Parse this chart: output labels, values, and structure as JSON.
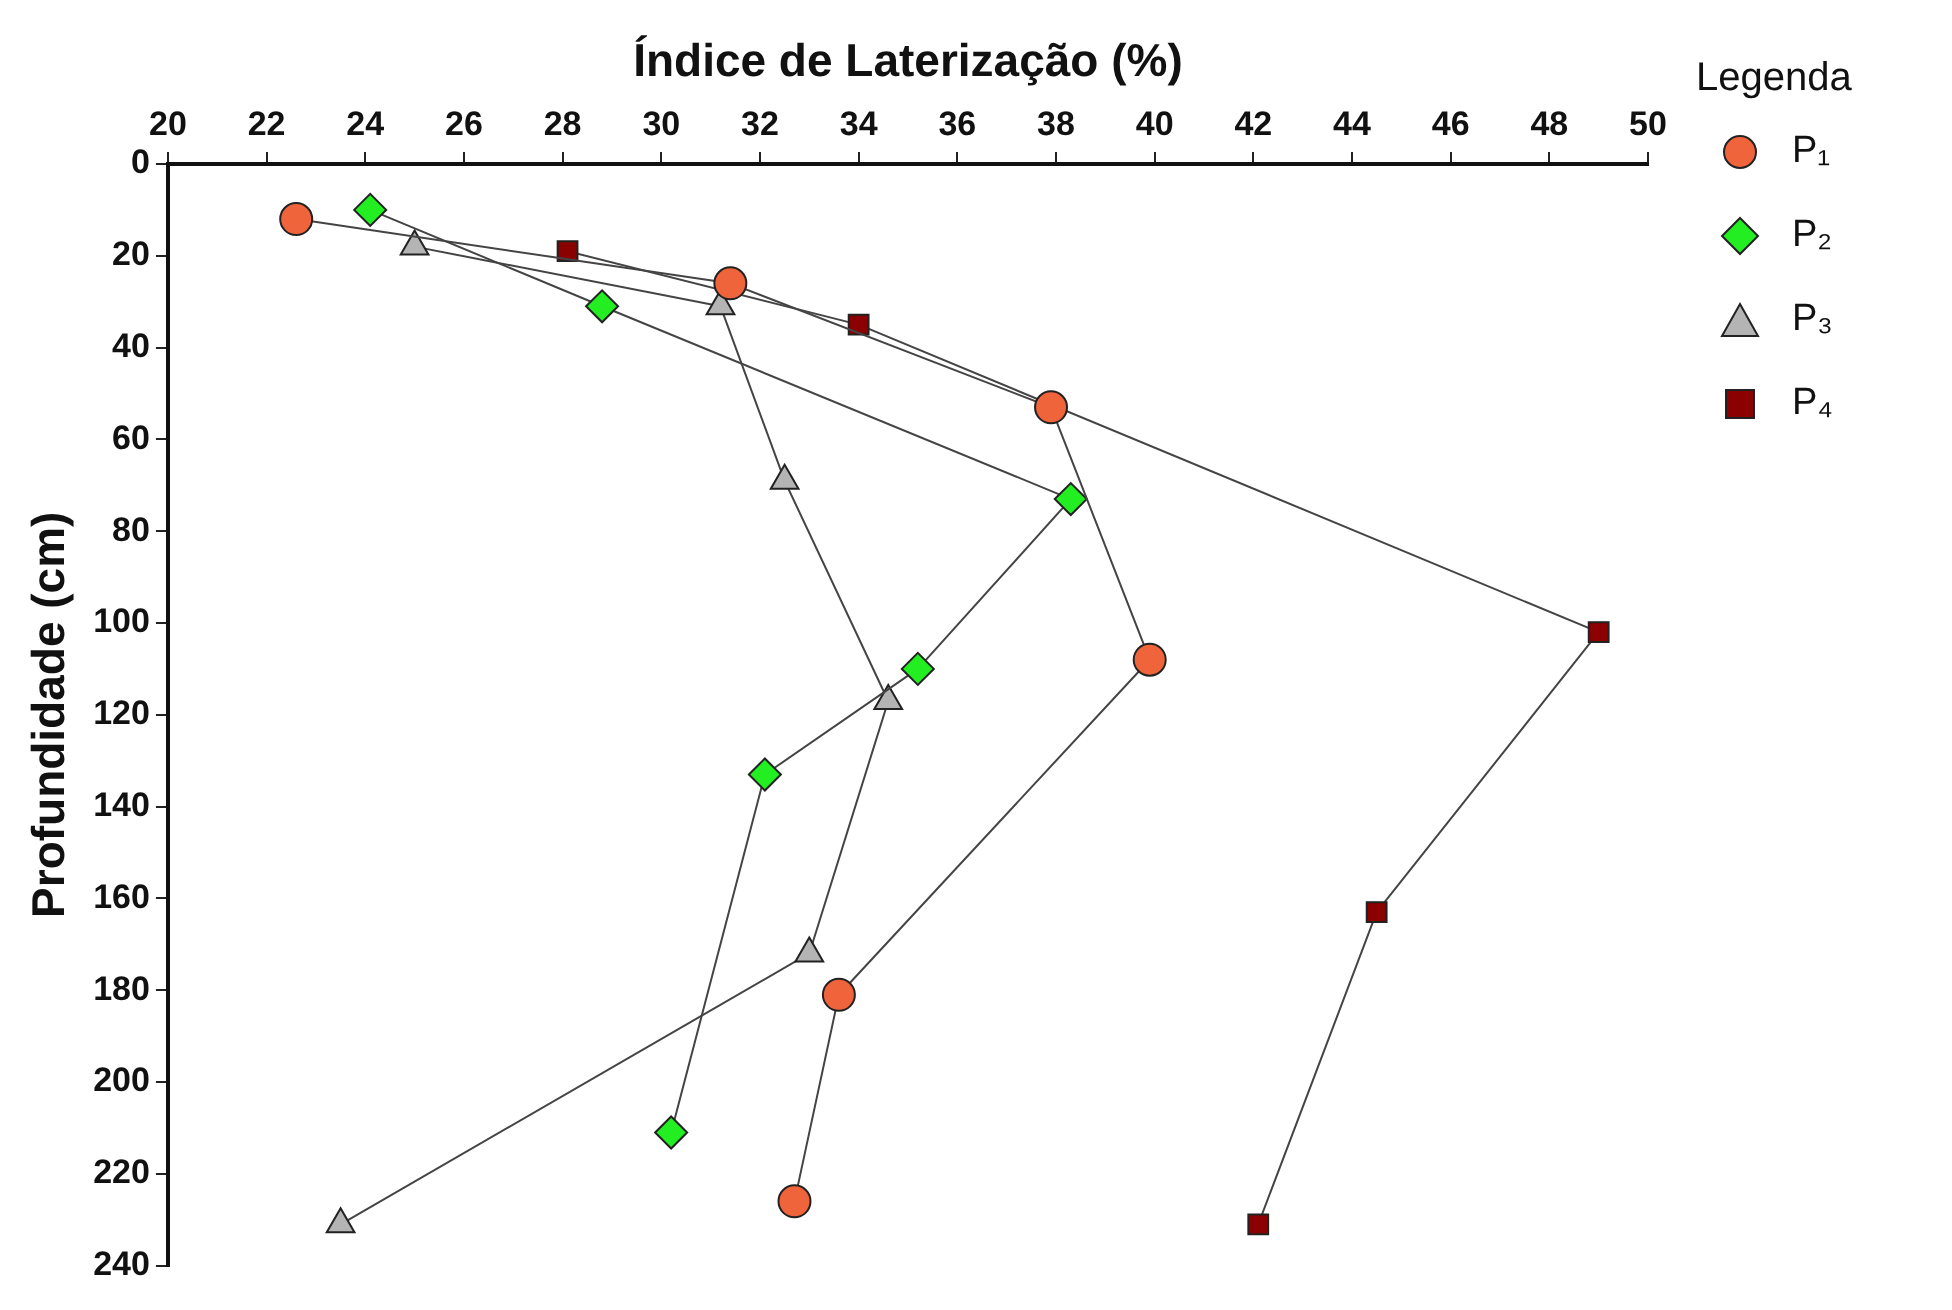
{
  "chart_data": {
    "type": "line",
    "xlabel": "Índice de Laterização (%)",
    "ylabel": "Profundidade (cm)",
    "legend_title": "Legenda",
    "xlim": [
      20,
      50
    ],
    "xticks": [
      20,
      22,
      24,
      26,
      28,
      30,
      32,
      34,
      36,
      38,
      40,
      42,
      44,
      46,
      48,
      50
    ],
    "ylim": [
      240,
      0
    ],
    "yticks": [
      0,
      20,
      40,
      60,
      80,
      100,
      120,
      140,
      160,
      180,
      200,
      220,
      240
    ],
    "grid": false,
    "legend": "right",
    "series": [
      {
        "name": "P₁",
        "color": "#f0643c",
        "marker": "circle",
        "x": [
          22.6,
          31.4,
          37.9,
          39.9,
          33.6,
          32.7
        ],
        "values": [
          12,
          26,
          53,
          108,
          181,
          226
        ]
      },
      {
        "name": "P₂",
        "color": "#22ee22",
        "marker": "diamond",
        "x": [
          24.1,
          28.8,
          38.3,
          35.2,
          32.1,
          30.2
        ],
        "values": [
          10,
          31,
          73,
          110,
          133,
          211
        ]
      },
      {
        "name": "P₃",
        "color": "#b4b4b4",
        "marker": "triangle",
        "x": [
          25.0,
          31.2,
          32.5,
          34.6,
          33.0,
          23.5
        ],
        "values": [
          18,
          31,
          69,
          117,
          172,
          231
        ]
      },
      {
        "name": "P₄",
        "color": "#8b0000",
        "marker": "square",
        "x": [
          28.1,
          34.0,
          49.0,
          44.5,
          42.1
        ],
        "values": [
          19,
          35,
          102,
          163,
          231
        ]
      }
    ]
  }
}
